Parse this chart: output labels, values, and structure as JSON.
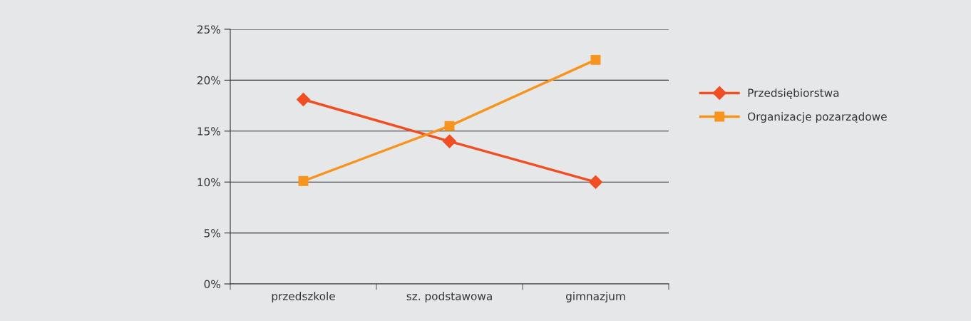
{
  "chart_data": {
    "type": "line",
    "categories": [
      "przedszkole",
      "sz. podstawowa",
      "gimnazjum"
    ],
    "series": [
      {
        "name": "Przedsiębiorstwa",
        "color": "#f04e23",
        "values": [
          18.1,
          14,
          10
        ],
        "marker": "diamond"
      },
      {
        "name": "Organizacje pozarządowe",
        "color": "#f7941d",
        "values": [
          10.1,
          15.5,
          22
        ],
        "marker": "square"
      }
    ],
    "ylim": [
      0,
      25
    ],
    "yticks": [
      {
        "value": 0,
        "label": "0%"
      },
      {
        "value": 5,
        "label": "5%"
      },
      {
        "value": 10,
        "label": "10%"
      },
      {
        "value": 15,
        "label": "15%"
      },
      {
        "value": 20,
        "label": "20%"
      },
      {
        "value": 25,
        "label": "25%"
      }
    ],
    "grid": "y",
    "legend": "right",
    "line_style": "solid"
  }
}
